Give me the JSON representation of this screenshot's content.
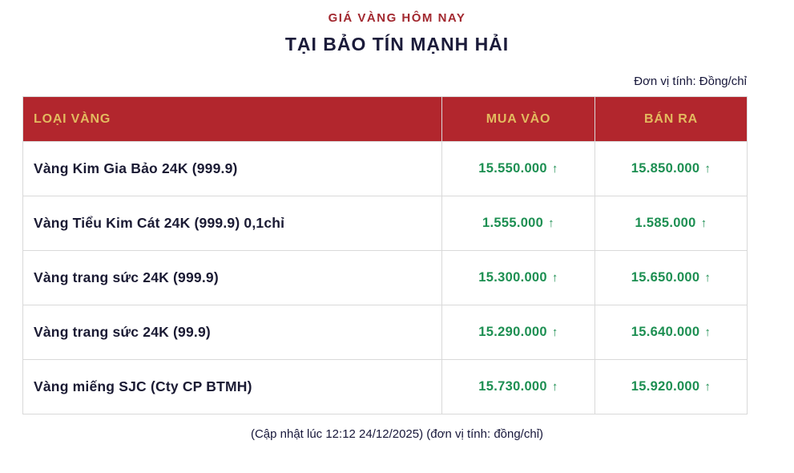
{
  "header": {
    "subtitle": "GIÁ VÀNG HÔM NAY",
    "title": "TẠI BẢO TÍN MẠNH HẢI",
    "unit_note": "Đơn vị tính: Đồng/chỉ"
  },
  "table": {
    "columns": [
      "LOẠI VÀNG",
      "MUA VÀO",
      "BÁN RA"
    ],
    "rows": [
      {
        "name": "Vàng Kim Gia Bảo 24K (999.9)",
        "buy": "15.550.000",
        "sell": "15.850.000"
      },
      {
        "name": "Vàng Tiểu Kim Cát 24K (999.9) 0,1chỉ",
        "buy": "1.555.000",
        "sell": "1.585.000"
      },
      {
        "name": "Vàng trang sức 24K (999.9)",
        "buy": "15.300.000",
        "sell": "15.650.000"
      },
      {
        "name": "Vàng trang sức 24K (99.9)",
        "buy": "15.290.000",
        "sell": "15.640.000"
      },
      {
        "name": "Vàng miếng SJC (Cty CP BTMH)",
        "buy": "15.730.000",
        "sell": "15.920.000"
      }
    ]
  },
  "footer": {
    "update_note": "(Cập nhật lúc 12:12 24/12/2025) (đơn vị tính: đồng/chỉ)"
  },
  "icons": {
    "up_arrow": "↑"
  },
  "colors": {
    "header_bg": "#b2262d",
    "header_text": "#e3ba5f",
    "subtitle_red": "#a2282f",
    "title_dark": "#1b1b3a",
    "price_up_green": "#1d8f52",
    "border_gray": "#d9d9d9"
  },
  "chart_data": {
    "type": "table",
    "title": "GIÁ VÀNG HÔM NAY TẠI BẢO TÍN MẠNH HẢI",
    "unit": "Đồng/chỉ",
    "columns": [
      "LOẠI VÀNG",
      "MUA VÀO",
      "BÁN RA"
    ],
    "rows": [
      {
        "category": "Vàng Kim Gia Bảo 24K (999.9)",
        "buy": 15550000,
        "sell": 15850000,
        "trend": "up"
      },
      {
        "category": "Vàng Tiểu Kim Cát 24K (999.9) 0,1chỉ",
        "buy": 1555000,
        "sell": 1585000,
        "trend": "up"
      },
      {
        "category": "Vàng trang sức 24K (999.9)",
        "buy": 15300000,
        "sell": 15650000,
        "trend": "up"
      },
      {
        "category": "Vàng trang sức 24K (99.9)",
        "buy": 15290000,
        "sell": 15640000,
        "trend": "up"
      },
      {
        "category": "Vàng miếng SJC (Cty CP BTMH)",
        "buy": 15730000,
        "sell": 15920000,
        "trend": "up"
      }
    ],
    "updated_at": "12:12 24/12/2025"
  }
}
